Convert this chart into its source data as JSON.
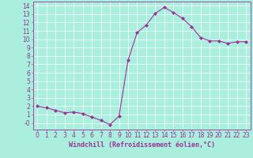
{
  "x": [
    0,
    1,
    2,
    3,
    4,
    5,
    6,
    7,
    8,
    9,
    10,
    11,
    12,
    13,
    14,
    15,
    16,
    17,
    18,
    19,
    20,
    21,
    22,
    23
  ],
  "y": [
    2,
    1.8,
    1.5,
    1.2,
    1.3,
    1.1,
    0.7,
    0.3,
    -0.2,
    0.8,
    7.5,
    10.8,
    11.7,
    13.1,
    13.8,
    13.2,
    12.5,
    11.5,
    10.2,
    9.8,
    9.8,
    9.5,
    9.7,
    9.7
  ],
  "line_color": "#993399",
  "marker": "D",
  "markersize": 2.0,
  "linewidth": 0.8,
  "xlabel": "Windchill (Refroidissement éolien,°C)",
  "xlabel_fontsize": 6,
  "bg_color": "#aaeedd",
  "grid_color": "#ffffff",
  "ylim": [
    -0.8,
    14.5
  ],
  "xlim": [
    -0.5,
    23.5
  ],
  "yticks": [
    0,
    1,
    2,
    3,
    4,
    5,
    6,
    7,
    8,
    9,
    10,
    11,
    12,
    13,
    14
  ],
  "xticks": [
    0,
    1,
    2,
    3,
    4,
    5,
    6,
    7,
    8,
    9,
    10,
    11,
    12,
    13,
    14,
    15,
    16,
    17,
    18,
    19,
    20,
    21,
    22,
    23
  ],
  "tick_fontsize": 5.5,
  "tick_color": "#993399",
  "axis_color": "#993399"
}
